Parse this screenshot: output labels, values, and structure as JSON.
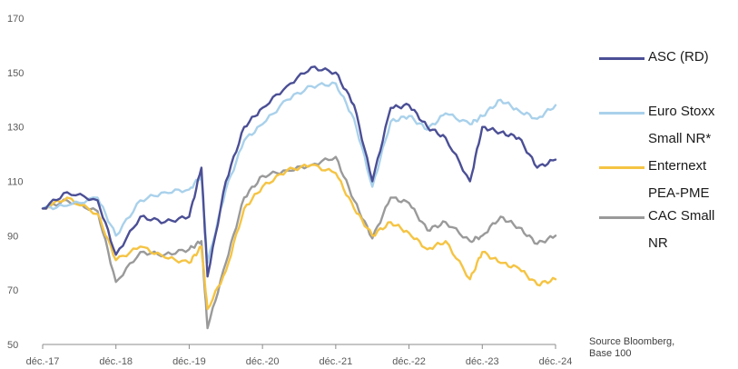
{
  "chart_data": {
    "type": "line",
    "title": "",
    "xlabel": "",
    "ylabel": "",
    "ylim": [
      50,
      170
    ],
    "yticks": [
      50,
      70,
      90,
      110,
      130,
      150,
      170
    ],
    "xticks": [
      "déc.-17",
      "déc.-18",
      "déc.-19",
      "déc.-20",
      "déc.-21",
      "déc.-22",
      "déc.-23",
      "déc.-24"
    ],
    "grid": false,
    "legend_position": "right",
    "x_dates": [
      "2017-12",
      "2018-04",
      "2018-09",
      "2018-12",
      "2019-04",
      "2019-08",
      "2019-12",
      "2020-02",
      "2020-03",
      "2020-06",
      "2020-09",
      "2020-12",
      "2021-04",
      "2021-08",
      "2021-12",
      "2022-03",
      "2022-06",
      "2022-09",
      "2022-12",
      "2023-03",
      "2023-06",
      "2023-10",
      "2023-12",
      "2024-03",
      "2024-06",
      "2024-09",
      "2024-12"
    ],
    "series": [
      {
        "name": "ASC (RD)",
        "color": "#4b4f95",
        "values": [
          100,
          106,
          103,
          83,
          97,
          95,
          97,
          115,
          75,
          110,
          130,
          137,
          145,
          152,
          150,
          138,
          110,
          137,
          138,
          130,
          126,
          110,
          130,
          128,
          126,
          115,
          118
        ]
      },
      {
        "name": "Euro Stoxx Small NR*",
        "color": "#a9d1eb",
        "values": [
          100,
          101,
          104,
          90,
          103,
          106,
          107,
          112,
          80,
          107,
          125,
          131,
          140,
          145,
          146,
          133,
          108,
          132,
          134,
          129,
          135,
          131,
          134,
          140,
          136,
          133,
          138
        ]
      },
      {
        "name": "Enternext PEA-PME",
        "color": "#f5c443",
        "values": [
          100,
          104,
          98,
          81,
          86,
          82,
          80,
          86,
          63,
          77,
          100,
          108,
          114,
          116,
          113,
          100,
          90,
          95,
          91,
          85,
          88,
          74,
          84,
          80,
          78,
          72,
          74
        ]
      },
      {
        "name": "CAC Small NR",
        "color": "#9a9a9a",
        "values": [
          100,
          103,
          99,
          73,
          84,
          83,
          85,
          88,
          56,
          80,
          104,
          112,
          114,
          116,
          119,
          103,
          89,
          104,
          102,
          92,
          95,
          88,
          90,
          97,
          93,
          87,
          90
        ]
      }
    ]
  },
  "legend": {
    "items": [
      {
        "label_lines": [
          "ASC (RD)"
        ],
        "color": "#4b4f95"
      },
      {
        "label_lines": [
          "Euro Stoxx",
          "Small NR*"
        ],
        "color": "#a9d1eb"
      },
      {
        "label_lines": [
          "Enternext",
          "PEA-PME"
        ],
        "color": "#f5c443"
      },
      {
        "label_lines": [
          "CAC Small",
          "NR"
        ],
        "color": "#9a9a9a"
      }
    ]
  },
  "source": {
    "line1": "Source Bloomberg,",
    "line2": "Base 100"
  }
}
